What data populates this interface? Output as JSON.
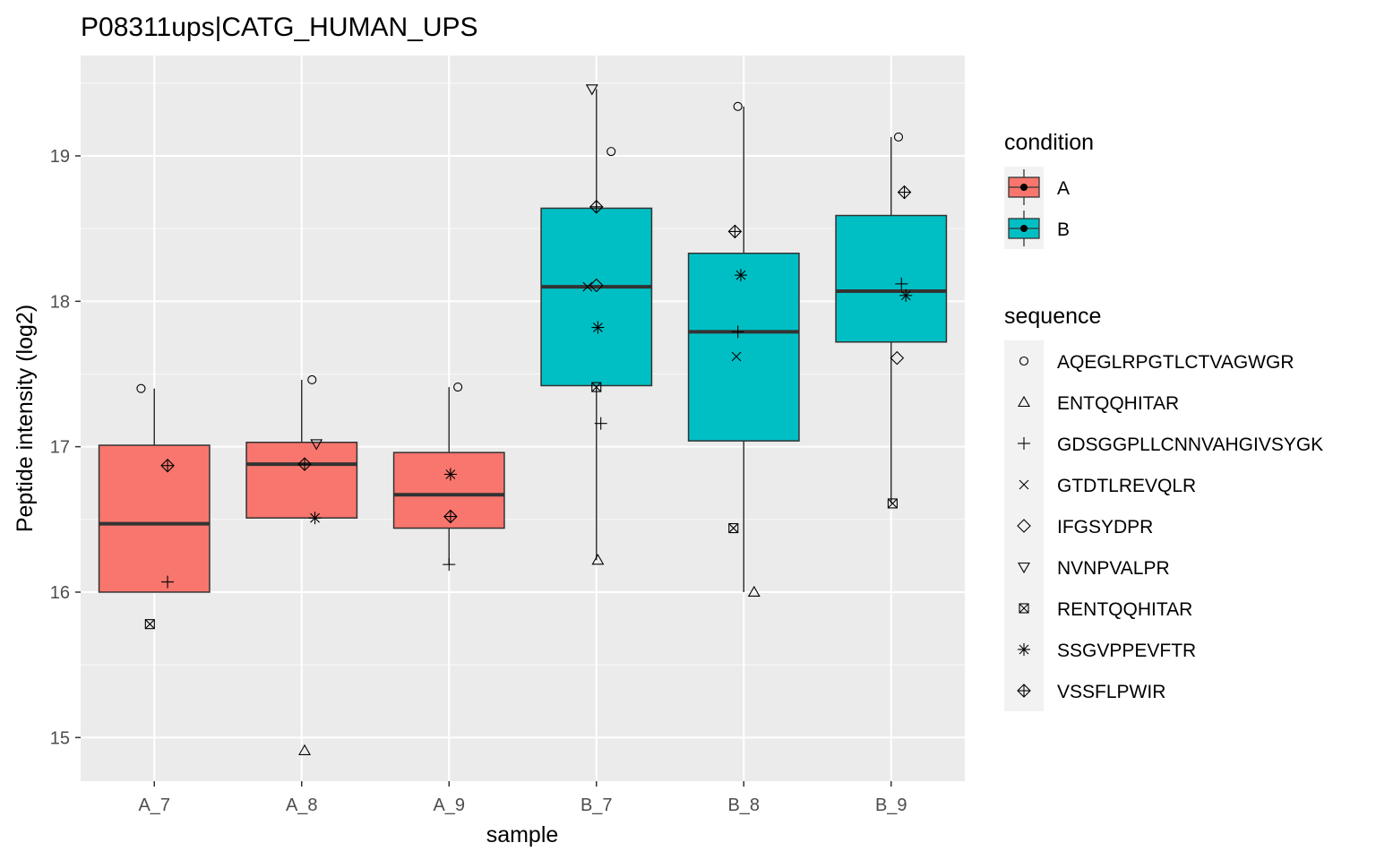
{
  "chart_data": {
    "type": "boxplot",
    "title": "P08311ups|CATG_HUMAN_UPS",
    "xlabel": "sample",
    "ylabel": "Peptide intensity (log2)",
    "categories": [
      "A_7",
      "A_8",
      "A_9",
      "B_7",
      "B_8",
      "B_9"
    ],
    "ylim": [
      14.7,
      19.69
    ],
    "yticks": [
      15,
      16,
      17,
      18,
      19
    ],
    "ytick_labels": [
      "15",
      "16",
      "17",
      "18",
      "19"
    ],
    "grid": true,
    "legend_position": "right",
    "condition_legend": {
      "title": "condition",
      "items": [
        {
          "label": "A",
          "color": "#F8766D"
        },
        {
          "label": "B",
          "color": "#00BFC4"
        }
      ]
    },
    "sequence_legend": {
      "title": "sequence",
      "items": [
        {
          "label": "AQEGLRPGTLCTVAGWGR",
          "shape": "circle"
        },
        {
          "label": "ENTQQHITAR",
          "shape": "triangle-up"
        },
        {
          "label": "GDSGGPLLCNNVAHGIVSYGK",
          "shape": "plus"
        },
        {
          "label": "GTDTLREVQLR",
          "shape": "cross"
        },
        {
          "label": "IFGSYDPR",
          "shape": "diamond"
        },
        {
          "label": "NVNPVALPR",
          "shape": "triangle-down"
        },
        {
          "label": "RENTQQHITAR",
          "shape": "square-cross"
        },
        {
          "label": "SSGVPPEVFTR",
          "shape": "asterisk"
        },
        {
          "label": "VSSFLPWIR",
          "shape": "diamond-plus"
        }
      ]
    },
    "boxes": [
      {
        "sample": "A_7",
        "condition": "A",
        "q1": 16.0,
        "median": 16.47,
        "q3": 17.01,
        "whisker_low": 16.0,
        "whisker_high": 17.4
      },
      {
        "sample": "A_8",
        "condition": "A",
        "q1": 16.51,
        "median": 16.88,
        "q3": 17.03,
        "whisker_low": 16.51,
        "whisker_high": 17.46
      },
      {
        "sample": "A_9",
        "condition": "A",
        "q1": 16.44,
        "median": 16.67,
        "q3": 16.96,
        "whisker_low": 16.19,
        "whisker_high": 17.41
      },
      {
        "sample": "B_7",
        "condition": "B",
        "q1": 17.42,
        "median": 18.1,
        "q3": 18.64,
        "whisker_low": 16.22,
        "whisker_high": 19.46
      },
      {
        "sample": "B_8",
        "condition": "B",
        "q1": 17.04,
        "median": 17.79,
        "q3": 18.33,
        "whisker_low": 16.0,
        "whisker_high": 19.34
      },
      {
        "sample": "B_9",
        "condition": "B",
        "q1": 17.72,
        "median": 18.07,
        "q3": 18.59,
        "whisker_low": 16.61,
        "whisker_high": 19.13
      }
    ],
    "points": [
      {
        "sample": "A_7",
        "sequence": "AQEGLRPGTLCTVAGWGR",
        "y": 17.4,
        "jitter": -0.09
      },
      {
        "sample": "A_7",
        "sequence": "VSSFLPWIR",
        "y": 16.87,
        "jitter": 0.09
      },
      {
        "sample": "A_7",
        "sequence": "GDSGGPLLCNNVAHGIVSYGK",
        "y": 16.07,
        "jitter": 0.09
      },
      {
        "sample": "A_7",
        "sequence": "RENTQQHITAR",
        "y": 15.78,
        "jitter": -0.03
      },
      {
        "sample": "A_8",
        "sequence": "AQEGLRPGTLCTVAGWGR",
        "y": 17.46,
        "jitter": 0.07
      },
      {
        "sample": "A_8",
        "sequence": "NVNPVALPR",
        "y": 17.02,
        "jitter": 0.1
      },
      {
        "sample": "A_8",
        "sequence": "VSSFLPWIR",
        "y": 16.88,
        "jitter": 0.02
      },
      {
        "sample": "A_8",
        "sequence": "SSGVPPEVFTR",
        "y": 16.51,
        "jitter": 0.09
      },
      {
        "sample": "A_8",
        "sequence": "ENTQQHITAR",
        "y": 14.91,
        "jitter": 0.02
      },
      {
        "sample": "A_9",
        "sequence": "AQEGLRPGTLCTVAGWGR",
        "y": 17.41,
        "jitter": 0.06
      },
      {
        "sample": "A_9",
        "sequence": "SSGVPPEVFTR",
        "y": 16.81,
        "jitter": 0.01
      },
      {
        "sample": "A_9",
        "sequence": "VSSFLPWIR",
        "y": 16.52,
        "jitter": 0.01
      },
      {
        "sample": "A_9",
        "sequence": "GDSGGPLLCNNVAHGIVSYGK",
        "y": 16.19,
        "jitter": 0.0
      },
      {
        "sample": "B_7",
        "sequence": "NVNPVALPR",
        "y": 19.46,
        "jitter": -0.03
      },
      {
        "sample": "B_7",
        "sequence": "AQEGLRPGTLCTVAGWGR",
        "y": 19.03,
        "jitter": 0.1
      },
      {
        "sample": "B_7",
        "sequence": "VSSFLPWIR",
        "y": 18.65,
        "jitter": 0.0
      },
      {
        "sample": "B_7",
        "sequence": "IFGSYDPR",
        "y": 18.11,
        "jitter": 0.0
      },
      {
        "sample": "B_7",
        "sequence": "GTDTLREVQLR",
        "y": 18.1,
        "jitter": -0.06
      },
      {
        "sample": "B_7",
        "sequence": "SSGVPPEVFTR",
        "y": 17.82,
        "jitter": 0.01
      },
      {
        "sample": "B_7",
        "sequence": "RENTQQHITAR",
        "y": 17.41,
        "jitter": 0.0
      },
      {
        "sample": "B_7",
        "sequence": "GDSGGPLLCNNVAHGIVSYGK",
        "y": 17.16,
        "jitter": 0.03
      },
      {
        "sample": "B_7",
        "sequence": "ENTQQHITAR",
        "y": 16.22,
        "jitter": 0.01
      },
      {
        "sample": "B_8",
        "sequence": "AQEGLRPGTLCTVAGWGR",
        "y": 19.34,
        "jitter": -0.04
      },
      {
        "sample": "B_8",
        "sequence": "VSSFLPWIR",
        "y": 18.48,
        "jitter": -0.06
      },
      {
        "sample": "B_8",
        "sequence": "SSGVPPEVFTR",
        "y": 18.18,
        "jitter": -0.02
      },
      {
        "sample": "B_8",
        "sequence": "GDSGGPLLCNNVAHGIVSYGK",
        "y": 17.79,
        "jitter": -0.04
      },
      {
        "sample": "B_8",
        "sequence": "GTDTLREVQLR",
        "y": 17.62,
        "jitter": -0.05
      },
      {
        "sample": "B_8",
        "sequence": "RENTQQHITAR",
        "y": 16.44,
        "jitter": -0.07
      },
      {
        "sample": "B_8",
        "sequence": "ENTQQHITAR",
        "y": 16.0,
        "jitter": 0.07
      },
      {
        "sample": "B_9",
        "sequence": "AQEGLRPGTLCTVAGWGR",
        "y": 19.13,
        "jitter": 0.05
      },
      {
        "sample": "B_9",
        "sequence": "VSSFLPWIR",
        "y": 18.75,
        "jitter": 0.09
      },
      {
        "sample": "B_9",
        "sequence": "GDSGGPLLCNNVAHGIVSYGK",
        "y": 18.12,
        "jitter": 0.07
      },
      {
        "sample": "B_9",
        "sequence": "SSGVPPEVFTR",
        "y": 18.04,
        "jitter": 0.1
      },
      {
        "sample": "B_9",
        "sequence": "IFGSYDPR",
        "y": 17.61,
        "jitter": 0.04
      },
      {
        "sample": "B_9",
        "sequence": "RENTQQHITAR",
        "y": 16.61,
        "jitter": 0.01
      }
    ]
  }
}
